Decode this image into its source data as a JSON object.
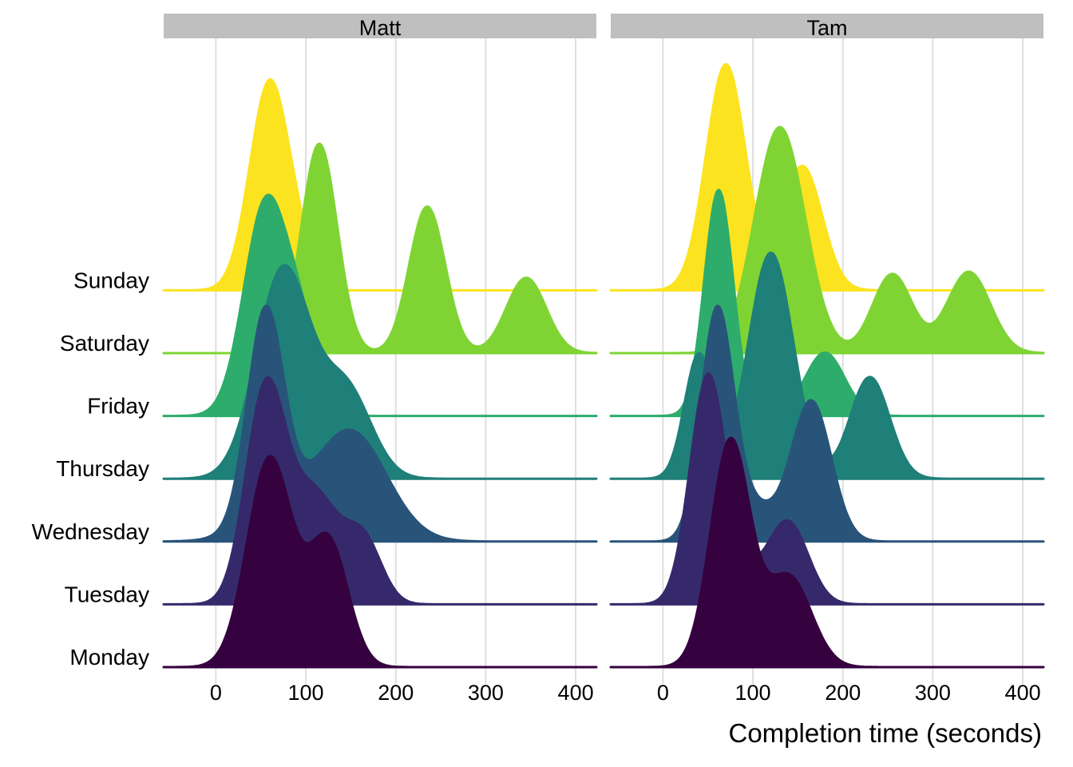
{
  "chart_data": {
    "type": "ridgeline",
    "xlabel": "Completion time (seconds)",
    "xlim": [
      -58,
      423
    ],
    "x_ticks": [
      0,
      100,
      200,
      300,
      400
    ],
    "categories": [
      "Monday",
      "Tuesday",
      "Wednesday",
      "Thursday",
      "Friday",
      "Saturday",
      "Sunday"
    ],
    "colors": {
      "Monday": "#35023F",
      "Tuesday": "#36296B",
      "Wednesday": "#29547A",
      "Thursday": "#1F7F79",
      "Friday": "#2EAC6B",
      "Saturday": "#7FD434",
      "Sunday": "#FCE31F"
    },
    "panels": [
      {
        "name": "Matt",
        "ridges": [
          {
            "day": "Monday",
            "components": [
              [
                60,
                25,
                1.0
              ],
              [
                125,
                22,
                0.6
              ]
            ]
          },
          {
            "day": "Tuesday",
            "components": [
              [
                55,
                22,
                1.0
              ],
              [
                110,
                28,
                0.52
              ],
              [
                165,
                20,
                0.28
              ]
            ]
          },
          {
            "day": "Wednesday",
            "components": [
              [
                55,
                20,
                1.0
              ],
              [
                150,
                40,
                0.52
              ],
              [
                70,
                40,
                0.1
              ]
            ]
          },
          {
            "day": "Thursday",
            "components": [
              [
                75,
                30,
                1.0
              ],
              [
                145,
                28,
                0.42
              ]
            ]
          },
          {
            "day": "Friday",
            "components": [
              [
                55,
                24,
                1.0
              ],
              [
                95,
                20,
                0.35
              ]
            ]
          },
          {
            "day": "Saturday",
            "components": [
              [
                115,
                20,
                1.0
              ],
              [
                235,
                20,
                0.7
              ],
              [
                345,
                22,
                0.36
              ]
            ]
          },
          {
            "day": "Sunday",
            "components": [
              [
                60,
                22,
                1.0
              ],
              [
                95,
                15,
                0.1
              ]
            ]
          }
        ]
      },
      {
        "name": "Tam",
        "ridges": [
          {
            "day": "Monday",
            "components": [
              [
                75,
                22,
                1.0
              ],
              [
                140,
                25,
                0.4
              ]
            ]
          },
          {
            "day": "Tuesday",
            "components": [
              [
                50,
                20,
                1.0
              ],
              [
                140,
                22,
                0.35
              ],
              [
                95,
                25,
                0.1
              ]
            ]
          },
          {
            "day": "Wednesday",
            "components": [
              [
                60,
                18,
                1.0
              ],
              [
                165,
                22,
                0.62
              ],
              [
                100,
                25,
                0.15
              ]
            ]
          },
          {
            "day": "Thursday",
            "components": [
              [
                40,
                16,
                0.55
              ],
              [
                120,
                25,
                1.0
              ],
              [
                230,
                22,
                0.45
              ]
            ]
          },
          {
            "day": "Friday",
            "components": [
              [
                62,
                16,
                1.0
              ],
              [
                180,
                22,
                0.28
              ]
            ]
          },
          {
            "day": "Saturday",
            "components": [
              [
                130,
                28,
                1.0
              ],
              [
                255,
                22,
                0.35
              ],
              [
                340,
                24,
                0.36
              ]
            ]
          },
          {
            "day": "Sunday",
            "components": [
              [
                70,
                22,
                1.0
              ],
              [
                155,
                22,
                0.55
              ]
            ]
          }
        ]
      }
    ]
  }
}
